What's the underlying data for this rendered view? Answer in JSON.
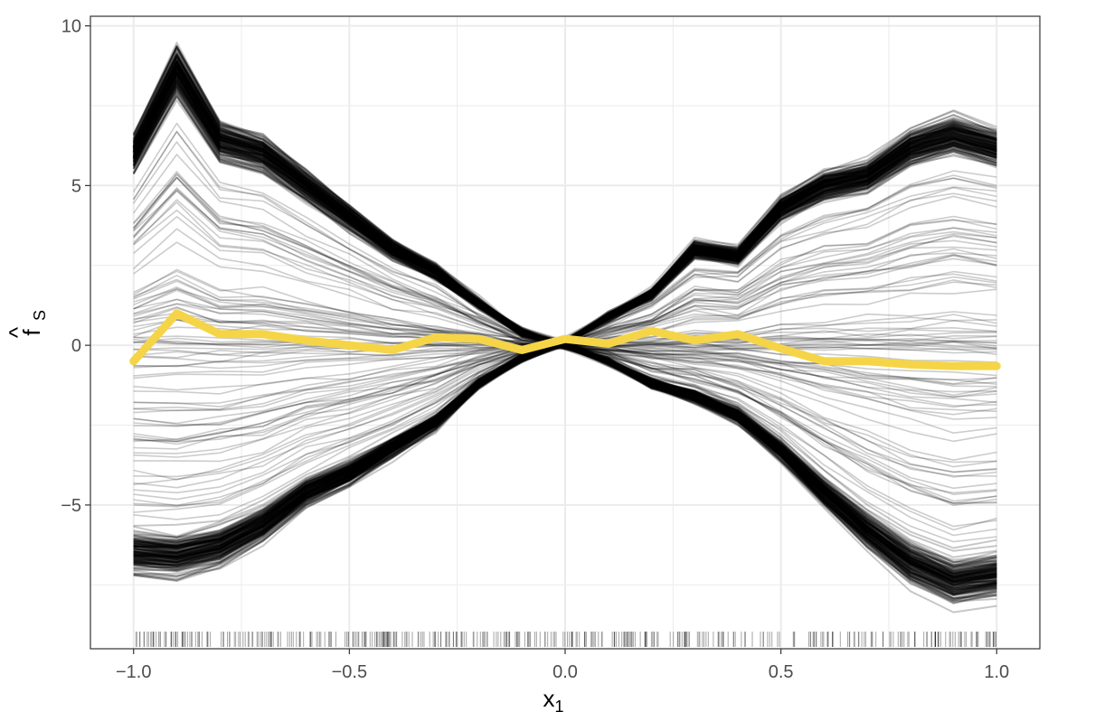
{
  "chart_data": {
    "type": "line",
    "title": "",
    "xlabel": "x",
    "xlabel_subscript": "1",
    "ylabel": "f",
    "ylabel_hat": "^",
    "ylabel_subscript": "S",
    "xlim": [
      -1.1,
      1.1
    ],
    "ylim": [
      -9.5,
      10.3
    ],
    "x_ticks": [
      -1.0,
      -0.5,
      0.0,
      0.5,
      1.0
    ],
    "x_tick_labels": [
      "−1.0",
      "−0.5",
      "0.0",
      "0.5",
      "1.0"
    ],
    "y_ticks": [
      -5,
      0,
      5,
      10
    ],
    "y_tick_labels": [
      "−5",
      "0",
      "5",
      "10"
    ],
    "grid": true,
    "legend": "none",
    "x": [
      -1.0,
      -0.9,
      -0.8,
      -0.7,
      -0.6,
      -0.5,
      -0.4,
      -0.3,
      -0.2,
      -0.1,
      0.0,
      0.1,
      0.2,
      0.3,
      0.4,
      0.5,
      0.6,
      0.7,
      0.8,
      0.9,
      1.0
    ],
    "series": [
      {
        "role": "ice-curves-decreasing",
        "color": "#000000",
        "values": [
          6.0,
          8.6,
          6.4,
          6.0,
          5.0,
          4.0,
          3.0,
          2.3,
          1.3,
          0.4,
          0.0,
          -0.5,
          -1.2,
          -1.6,
          -2.2,
          -3.3,
          -4.6,
          -5.8,
          -6.8,
          -7.4,
          -7.2
        ]
      },
      {
        "role": "ice-curves-increasing",
        "color": "#000000",
        "values": [
          -6.5,
          -6.6,
          -6.3,
          -5.6,
          -4.6,
          -4.0,
          -3.2,
          -2.4,
          -1.2,
          -0.4,
          0.1,
          0.9,
          1.6,
          3.0,
          2.8,
          4.3,
          5.0,
          5.3,
          6.2,
          6.6,
          6.2
        ]
      },
      {
        "role": "partial-dependence-average",
        "color": "#F5D547",
        "values": [
          -0.5,
          1.0,
          0.35,
          0.35,
          0.15,
          0.0,
          -0.15,
          0.25,
          0.2,
          -0.15,
          0.2,
          0.05,
          0.45,
          0.15,
          0.35,
          -0.1,
          -0.5,
          -0.5,
          -0.6,
          -0.65,
          -0.65
        ]
      }
    ],
    "rug": "x values along bottom of panel, roughly uniform over [-1, 1]"
  }
}
